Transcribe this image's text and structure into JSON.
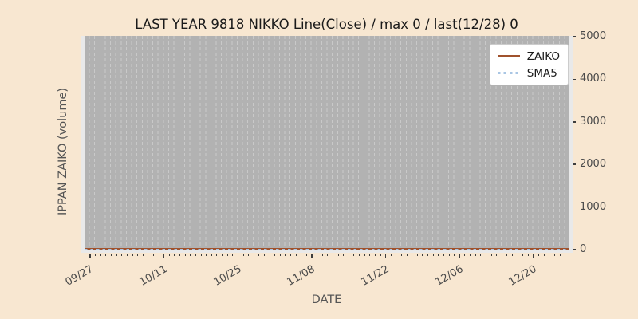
{
  "colors": {
    "background": "#f8e7d1",
    "plot_bg": "#e9e9e9",
    "band": "#b2b2b2",
    "grid_dash": "#c9c9c9",
    "zaiko": "#a0522d",
    "sma5": "#a9c6e4",
    "tick_text": "#4a4a4a",
    "axis_label": "#555555",
    "title_text": "#1a1a1a",
    "legend_bg": "#ffffff",
    "legend_border": "#cccccc"
  },
  "chart_data": {
    "type": "line",
    "title": "LAST YEAR 9818 NIKKO Line(Close) / max 0 / last(12/28) 0",
    "xlabel": "DATE",
    "ylabel": "IPPAN ZAIKO (volume)",
    "xticklabels": [
      "09/27",
      "10/11",
      "10/25",
      "11/08",
      "11/22",
      "12/06",
      "12/20"
    ],
    "yticks": [
      0,
      1000,
      2000,
      3000,
      4000,
      5000
    ],
    "ylim": [
      0,
      5000
    ],
    "x_range_labels": [
      "09/27",
      "12/28"
    ],
    "grid": "vertical-dashed-daily",
    "legend_position": "upper right",
    "series": [
      {
        "name": "ZAIKO",
        "style": "solid",
        "color": "#a0522d",
        "value_constant": 0,
        "description": "flat line at 0 across entire date range"
      },
      {
        "name": "SMA5",
        "style": "dotted",
        "color": "#a9c6e4",
        "value_constant": 0,
        "description": "flat dotted line at 0 across entire date range"
      }
    ],
    "stats_in_title": {
      "max": 0,
      "last_date": "12/28",
      "last_value": 0
    }
  }
}
